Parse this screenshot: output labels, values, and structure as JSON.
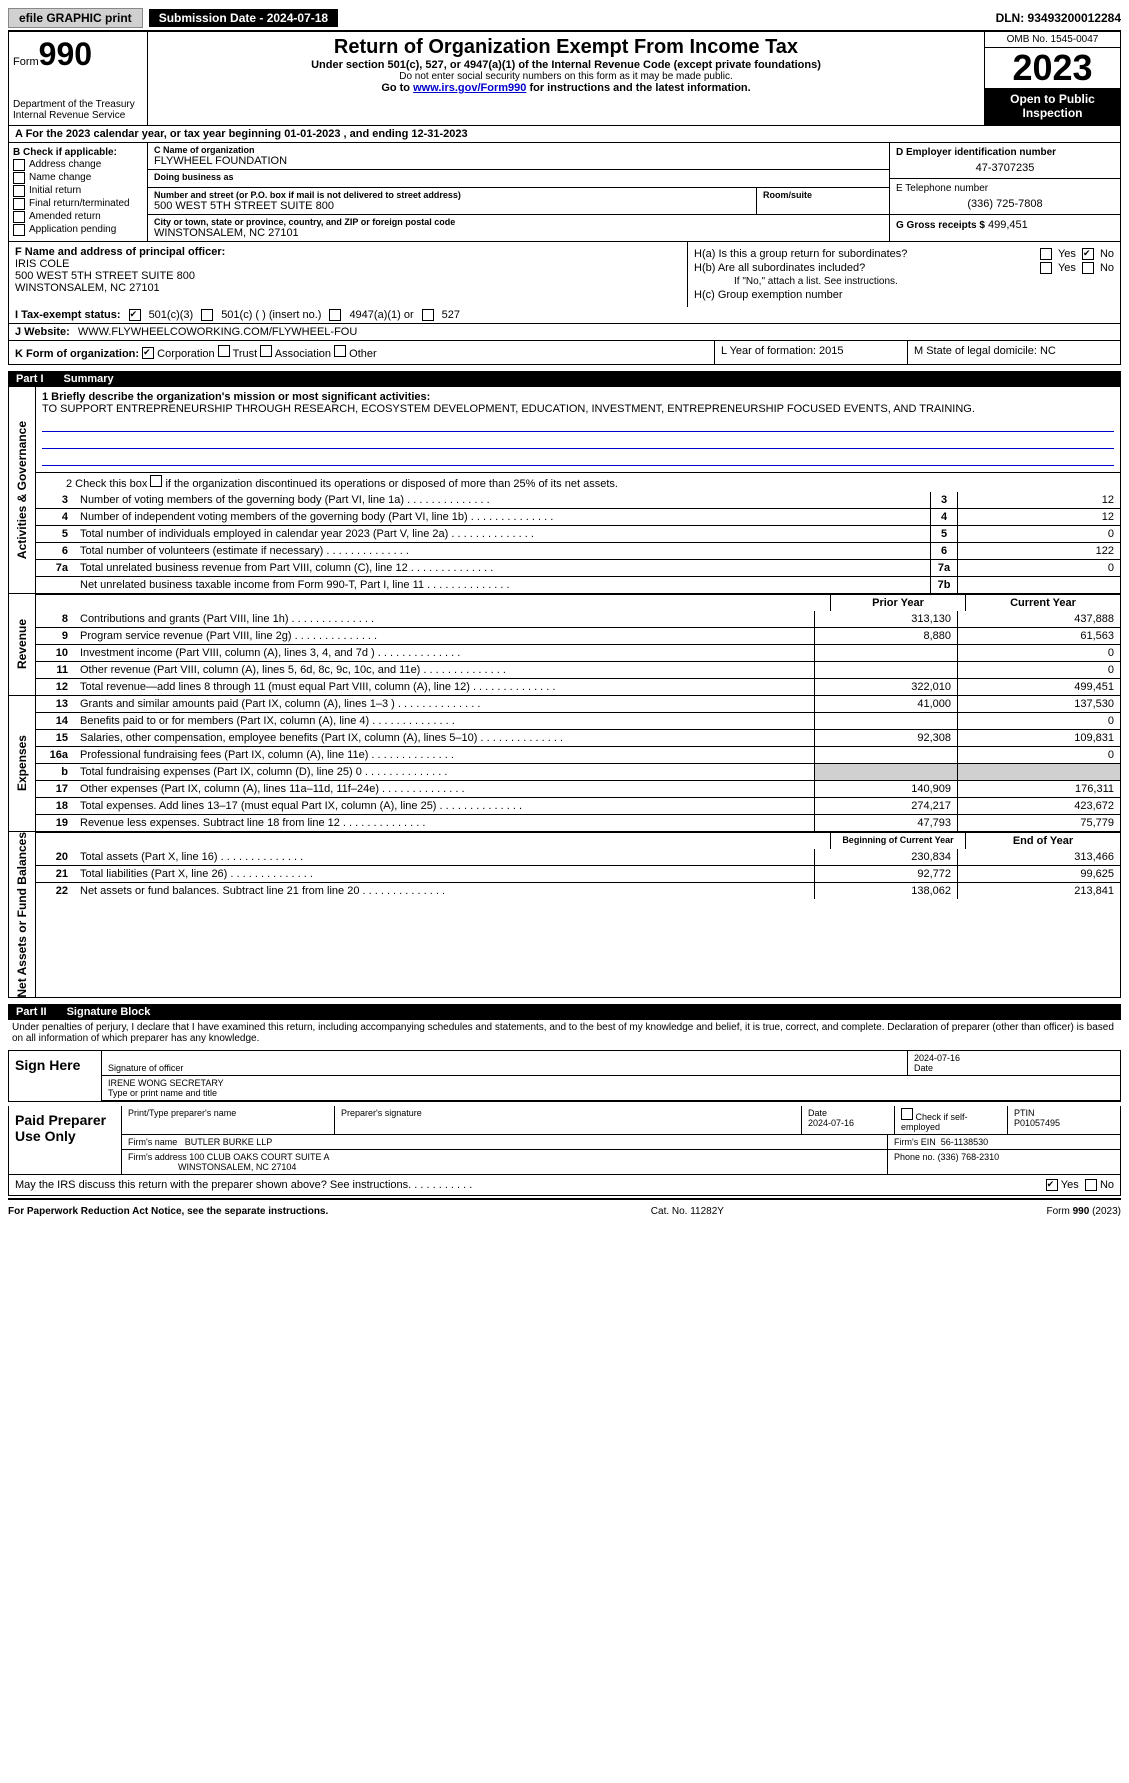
{
  "topbar": {
    "efile": "efile GRAPHIC print",
    "submission_label": "Submission Date - 2024-07-18",
    "dln": "DLN: 93493200012284"
  },
  "header": {
    "form_prefix": "Form",
    "form_number": "990",
    "dept": "Department of the Treasury",
    "irs": "Internal Revenue Service",
    "title": "Return of Organization Exempt From Income Tax",
    "subtitle": "Under section 501(c), 527, or 4947(a)(1) of the Internal Revenue Code (except private foundations)",
    "warn": "Do not enter social security numbers on this form as it may be made public.",
    "goto_pre": "Go to ",
    "goto_link": "www.irs.gov/Form990",
    "goto_post": " for instructions and the latest information.",
    "omb": "OMB No. 1545-0047",
    "year": "2023",
    "open": "Open to Public Inspection"
  },
  "rowA": "A For the 2023 calendar year, or tax year beginning 01-01-2023    , and ending 12-31-2023",
  "colB": {
    "header": "B Check if applicable:",
    "opts": [
      "Address change",
      "Name change",
      "Initial return",
      "Final return/terminated",
      "Amended return",
      "Application pending"
    ]
  },
  "colC": {
    "name_label": "C Name of organization",
    "name": "FLYWHEEL FOUNDATION",
    "dba_label": "Doing business as",
    "street_label": "Number and street (or P.O. box if mail is not delivered to street address)",
    "street": "500 WEST 5TH STREET SUITE 800",
    "room_label": "Room/suite",
    "city_label": "City or town, state or province, country, and ZIP or foreign postal code",
    "city": "WINSTONSALEM, NC  27101"
  },
  "colD": {
    "ein_label": "D Employer identification number",
    "ein": "47-3707235",
    "phone_label": "E Telephone number",
    "phone": "(336) 725-7808",
    "gross_label": "G Gross receipts $",
    "gross": "499,451"
  },
  "sectionF": {
    "label": "F Name and address of principal officer:",
    "name": "IRIS COLE",
    "addr1": "500 WEST 5TH STREET SUITE 800",
    "addr2": "WINSTONSALEM, NC  27101"
  },
  "sectionH": {
    "ha": "H(a)  Is this a group return for subordinates?",
    "hb": "H(b)  Are all subordinates included?",
    "hb_note": "If \"No,\" attach a list. See instructions.",
    "hc": "H(c)  Group exemption number",
    "yes": "Yes",
    "no": "No"
  },
  "rowI": {
    "label": "I   Tax-exempt status:",
    "o1": "501(c)(3)",
    "o2": "501(c) (  ) (insert no.)",
    "o3": "4947(a)(1) or",
    "o4": "527"
  },
  "rowJ": {
    "label": "J   Website:",
    "value": "WWW.FLYWHEELCOWORKING.COM/FLYWHEEL-FOU"
  },
  "rowK": {
    "label": "K Form of organization:",
    "o1": "Corporation",
    "o2": "Trust",
    "o3": "Association",
    "o4": "Other",
    "L": "L Year of formation: 2015",
    "M": "M State of legal domicile: NC"
  },
  "part1": {
    "label": "Part I",
    "title": "Summary"
  },
  "summary": {
    "q1_label": "1   Briefly describe the organization's mission or most significant activities:",
    "q1_text": "TO SUPPORT ENTREPRENEURSHIP THROUGH RESEARCH, ECOSYSTEM DEVELOPMENT, EDUCATION, INVESTMENT, ENTREPRENEURSHIP FOCUSED EVENTS, AND TRAINING.",
    "q2": "2   Check this box      if the organization discontinued its operations or disposed of more than 25% of its net assets.",
    "rows_gov": [
      {
        "n": "3",
        "d": "Number of voting members of the governing body (Part VI, line 1a)",
        "box": "3",
        "v": "12"
      },
      {
        "n": "4",
        "d": "Number of independent voting members of the governing body (Part VI, line 1b)",
        "box": "4",
        "v": "12"
      },
      {
        "n": "5",
        "d": "Total number of individuals employed in calendar year 2023 (Part V, line 2a)",
        "box": "5",
        "v": "0"
      },
      {
        "n": "6",
        "d": "Total number of volunteers (estimate if necessary)",
        "box": "6",
        "v": "122"
      },
      {
        "n": "7a",
        "d": "Total unrelated business revenue from Part VIII, column (C), line 12",
        "box": "7a",
        "v": "0"
      },
      {
        "n": "",
        "d": "Net unrelated business taxable income from Form 990-T, Part I, line 11",
        "box": "7b",
        "v": ""
      }
    ],
    "hdr_prior": "Prior Year",
    "hdr_curr": "Current Year",
    "rows_rev": [
      {
        "n": "8",
        "d": "Contributions and grants (Part VIII, line 1h)",
        "p": "313,130",
        "c": "437,888"
      },
      {
        "n": "9",
        "d": "Program service revenue (Part VIII, line 2g)",
        "p": "8,880",
        "c": "61,563"
      },
      {
        "n": "10",
        "d": "Investment income (Part VIII, column (A), lines 3, 4, and 7d )",
        "p": "",
        "c": "0"
      },
      {
        "n": "11",
        "d": "Other revenue (Part VIII, column (A), lines 5, 6d, 8c, 9c, 10c, and 11e)",
        "p": "",
        "c": "0"
      },
      {
        "n": "12",
        "d": "Total revenue—add lines 8 through 11 (must equal Part VIII, column (A), line 12)",
        "p": "322,010",
        "c": "499,451"
      }
    ],
    "rows_exp": [
      {
        "n": "13",
        "d": "Grants and similar amounts paid (Part IX, column (A), lines 1–3 )",
        "p": "41,000",
        "c": "137,530"
      },
      {
        "n": "14",
        "d": "Benefits paid to or for members (Part IX, column (A), line 4)",
        "p": "",
        "c": "0"
      },
      {
        "n": "15",
        "d": "Salaries, other compensation, employee benefits (Part IX, column (A), lines 5–10)",
        "p": "92,308",
        "c": "109,831"
      },
      {
        "n": "16a",
        "d": "Professional fundraising fees (Part IX, column (A), line 11e)",
        "p": "",
        "c": "0"
      },
      {
        "n": "b",
        "d": "Total fundraising expenses (Part IX, column (D), line 25) 0",
        "p": "SHADE",
        "c": "SHADE"
      },
      {
        "n": "17",
        "d": "Other expenses (Part IX, column (A), lines 11a–11d, 11f–24e)",
        "p": "140,909",
        "c": "176,311"
      },
      {
        "n": "18",
        "d": "Total expenses. Add lines 13–17 (must equal Part IX, column (A), line 25)",
        "p": "274,217",
        "c": "423,672"
      },
      {
        "n": "19",
        "d": "Revenue less expenses. Subtract line 18 from line 12",
        "p": "47,793",
        "c": "75,779"
      }
    ],
    "hdr_beg": "Beginning of Current Year",
    "hdr_end": "End of Year",
    "rows_net": [
      {
        "n": "20",
        "d": "Total assets (Part X, line 16)",
        "p": "230,834",
        "c": "313,466"
      },
      {
        "n": "21",
        "d": "Total liabilities (Part X, line 26)",
        "p": "92,772",
        "c": "99,625"
      },
      {
        "n": "22",
        "d": "Net assets or fund balances. Subtract line 21 from line 20",
        "p": "138,062",
        "c": "213,841"
      }
    ],
    "vtab_gov": "Activities & Governance",
    "vtab_rev": "Revenue",
    "vtab_exp": "Expenses",
    "vtab_net": "Net Assets or Fund Balances"
  },
  "part2": {
    "label": "Part II",
    "title": "Signature Block"
  },
  "sig": {
    "intro": "Under penalties of perjury, I declare that I have examined this return, including accompanying schedules and statements, and to the best of my knowledge and belief, it is true, correct, and complete. Declaration of preparer (other than officer) is based on all information of which preparer has any knowledge.",
    "sign_here": "Sign Here",
    "sig_officer": "Signature of officer",
    "sig_date": "2024-07-16",
    "officer_name": "IRENE WONG  SECRETARY",
    "type_name": "Type or print name and title",
    "date_label": "Date",
    "paid": "Paid Preparer Use Only",
    "prep_name_label": "Print/Type preparer's name",
    "prep_sig_label": "Preparer's signature",
    "prep_date": "2024-07-16",
    "check_self": "Check       if self-employed",
    "ptin_label": "PTIN",
    "ptin": "P01057495",
    "firm_name_label": "Firm's name",
    "firm_name": "BUTLER BURKE LLP",
    "firm_ein_label": "Firm's EIN",
    "firm_ein": "56-1138530",
    "firm_addr_label": "Firm's address",
    "firm_addr": "100 CLUB OAKS COURT SUITE A",
    "firm_city": "WINSTONSALEM, NC  27104",
    "phone_label": "Phone no.",
    "phone": "(336) 768-2310"
  },
  "discuss": {
    "q": "May the IRS discuss this return with the preparer shown above? See instructions.",
    "yes": "Yes",
    "no": "No"
  },
  "footer": {
    "left": "For Paperwork Reduction Act Notice, see the separate instructions.",
    "mid": "Cat. No. 11282Y",
    "right": "Form 990 (2023)"
  }
}
